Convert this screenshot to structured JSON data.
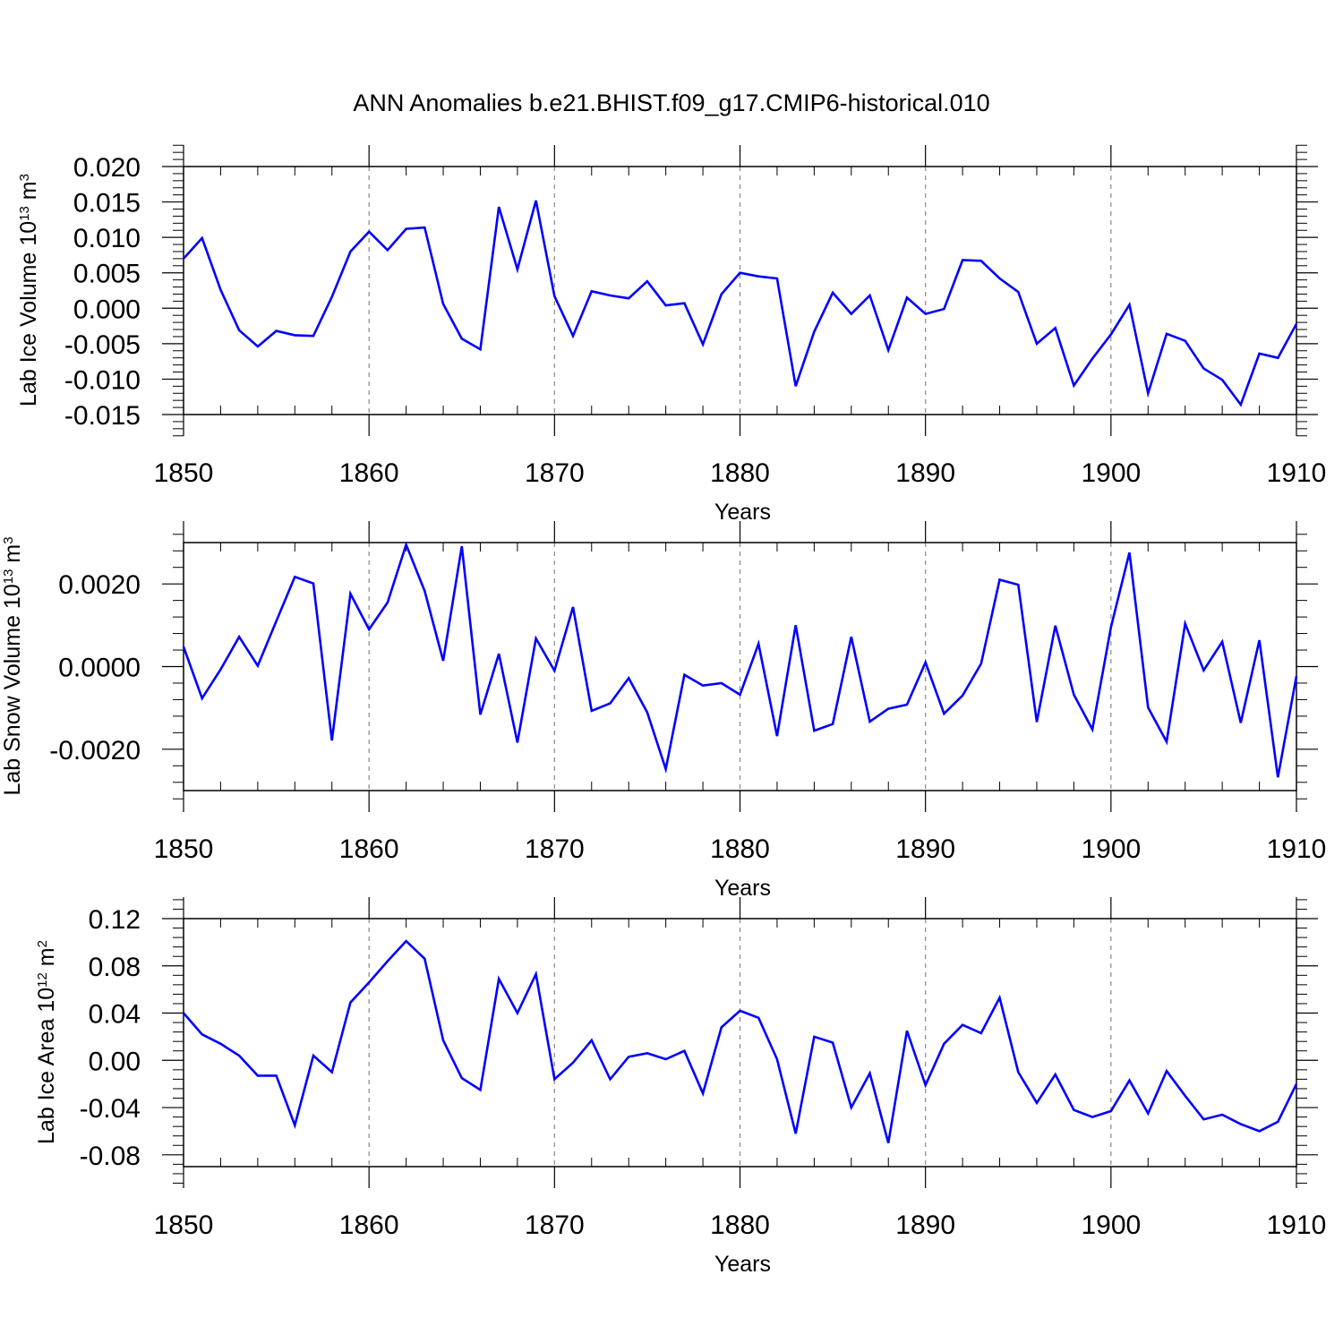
{
  "title": "ANN Anomalies b.e21.BHIST.f09_g17.CMIP6-historical.010",
  "colors": {
    "line": "#0000ff",
    "axis": "#000000",
    "grid": "#888888"
  },
  "chart_data": [
    {
      "type": "line",
      "title": "",
      "xlabel": "Years",
      "ylabel": {
        "prefix": "Lab Ice Volume 10",
        "exp": "13",
        "unit": " m",
        "unit_exp": "3"
      },
      "xlim": [
        1850,
        1910
      ],
      "ylim": [
        -0.015,
        0.02
      ],
      "xticks": [
        1850,
        1860,
        1870,
        1880,
        1890,
        1900,
        1910
      ],
      "yticks": [
        -0.015,
        -0.01,
        -0.005,
        0.0,
        0.005,
        0.01,
        0.015,
        0.02
      ],
      "ytick_labels": [
        "-0.015",
        "-0.010",
        "-0.005",
        "0.000",
        "0.005",
        "0.010",
        "0.015",
        "0.020"
      ],
      "vgrid": [
        1860,
        1870,
        1880,
        1890,
        1900
      ],
      "series": [
        {
          "name": "Lab Ice Volume",
          "x": [
            1850,
            1851,
            1852,
            1853,
            1854,
            1855,
            1856,
            1857,
            1858,
            1859,
            1860,
            1861,
            1862,
            1863,
            1864,
            1865,
            1866,
            1867,
            1868,
            1869,
            1870,
            1871,
            1872,
            1873,
            1874,
            1875,
            1876,
            1877,
            1878,
            1879,
            1880,
            1881,
            1882,
            1883,
            1884,
            1885,
            1886,
            1887,
            1888,
            1889,
            1890,
            1891,
            1892,
            1893,
            1894,
            1895,
            1896,
            1897,
            1898,
            1899,
            1900,
            1901,
            1902,
            1903,
            1904,
            1905,
            1906,
            1907,
            1908,
            1909,
            1910
          ],
          "values": [
            0.007,
            0.0099,
            0.0026,
            -0.0031,
            -0.0054,
            -0.0032,
            -0.0038,
            -0.0039,
            0.0016,
            0.008,
            0.0108,
            0.0082,
            0.0112,
            0.0114,
            0.0006,
            -0.0043,
            -0.0058,
            0.0143,
            0.0055,
            0.0152,
            0.0017,
            -0.0039,
            0.0024,
            0.0018,
            0.0014,
            0.0038,
            0.0004,
            0.0007,
            -0.0051,
            0.002,
            0.005,
            0.0045,
            0.0042,
            -0.011,
            -0.0033,
            0.0022,
            -0.0008,
            0.0018,
            -0.0059,
            0.0015,
            -0.0008,
            -0.0001,
            0.0068,
            0.0067,
            0.0042,
            0.0023,
            -0.005,
            -0.0028,
            -0.0109,
            -0.0071,
            -0.0037,
            0.0005,
            -0.012,
            -0.0036,
            -0.0046,
            -0.0085,
            -0.0101,
            -0.0136,
            -0.0064,
            -0.007,
            -0.0022
          ]
        }
      ]
    },
    {
      "type": "line",
      "title": "",
      "xlabel": "Years",
      "ylabel": {
        "prefix": "Lab Snow Volume 10",
        "exp": "13",
        "unit": " m",
        "unit_exp": "3"
      },
      "xlim": [
        1850,
        1910
      ],
      "ylim": [
        -0.003,
        0.003
      ],
      "xticks": [
        1850,
        1860,
        1870,
        1880,
        1890,
        1900,
        1910
      ],
      "yticks": [
        -0.002,
        0.0,
        0.002
      ],
      "ytick_labels": [
        "-0.0020",
        "0.0000",
        "0.0020"
      ],
      "vgrid": [
        1860,
        1870,
        1880,
        1890,
        1900
      ],
      "series": [
        {
          "name": "Lab Snow Volume",
          "x": [
            1850,
            1851,
            1852,
            1853,
            1854,
            1855,
            1856,
            1857,
            1858,
            1859,
            1860,
            1861,
            1862,
            1863,
            1864,
            1865,
            1866,
            1867,
            1868,
            1869,
            1870,
            1871,
            1872,
            1873,
            1874,
            1875,
            1876,
            1877,
            1878,
            1879,
            1880,
            1881,
            1882,
            1883,
            1884,
            1885,
            1886,
            1887,
            1888,
            1889,
            1890,
            1891,
            1892,
            1893,
            1894,
            1895,
            1896,
            1897,
            1898,
            1899,
            1900,
            1901,
            1902,
            1903,
            1904,
            1905,
            1906,
            1907,
            1908,
            1909,
            1910
          ],
          "values": [
            0.00048,
            -0.00077,
            -7e-05,
            0.00072,
            2e-05,
            0.0011,
            0.00217,
            0.00201,
            -0.00179,
            0.00176,
            0.0009,
            0.00155,
            0.00295,
            0.00183,
            0.00014,
            0.00291,
            -0.00116,
            0.00031,
            -0.00184,
            0.00068,
            -0.0001,
            0.00144,
            -0.00107,
            -0.00089,
            -0.00028,
            -0.00111,
            -0.00248,
            -0.0002,
            -0.00046,
            -0.0004,
            -0.00068,
            0.00055,
            -0.00168,
            0.001,
            -0.00155,
            -0.00139,
            0.00072,
            -0.00133,
            -0.00102,
            -0.00092,
            0.0001,
            -0.00114,
            -0.0007,
            7e-05,
            0.0021,
            0.00198,
            -0.00134,
            0.00099,
            -0.00068,
            -0.00152,
            0.00095,
            0.00276,
            -0.00099,
            -0.00182,
            0.00104,
            -9e-05,
            0.0006,
            -0.00136,
            0.00064,
            -0.00268,
            -0.00023
          ]
        }
      ]
    },
    {
      "type": "line",
      "title": "",
      "xlabel": "Years",
      "ylabel": {
        "prefix": "Lab Ice Area 10",
        "exp": "12",
        "unit": " m",
        "unit_exp": "2"
      },
      "xlim": [
        1850,
        1910
      ],
      "ylim": [
        -0.09,
        0.12
      ],
      "xticks": [
        1850,
        1860,
        1870,
        1880,
        1890,
        1900,
        1910
      ],
      "yticks": [
        -0.08,
        -0.04,
        0.0,
        0.04,
        0.08,
        0.12
      ],
      "ytick_labels": [
        "-0.08",
        "-0.04",
        "0.00",
        "0.04",
        "0.08",
        "0.12"
      ],
      "vgrid": [
        1860,
        1870,
        1880,
        1890,
        1900
      ],
      "series": [
        {
          "name": "Lab Ice Area",
          "x": [
            1850,
            1851,
            1852,
            1853,
            1854,
            1855,
            1856,
            1857,
            1858,
            1859,
            1860,
            1861,
            1862,
            1863,
            1864,
            1865,
            1866,
            1867,
            1868,
            1869,
            1870,
            1871,
            1872,
            1873,
            1874,
            1875,
            1876,
            1877,
            1878,
            1879,
            1880,
            1881,
            1882,
            1883,
            1884,
            1885,
            1886,
            1887,
            1888,
            1889,
            1890,
            1891,
            1892,
            1893,
            1894,
            1895,
            1896,
            1897,
            1898,
            1899,
            1900,
            1901,
            1902,
            1903,
            1904,
            1905,
            1906,
            1907,
            1908,
            1909,
            1910
          ],
          "values": [
            0.04,
            0.022,
            0.014,
            0.004,
            -0.013,
            -0.013,
            -0.055,
            0.004,
            -0.01,
            0.049,
            0.066,
            0.084,
            0.101,
            0.086,
            0.017,
            -0.015,
            -0.025,
            0.069,
            0.04,
            0.073,
            -0.016,
            -0.002,
            0.017,
            -0.016,
            0.003,
            0.006,
            0.001,
            0.008,
            -0.028,
            0.028,
            0.042,
            0.036,
            0.001,
            -0.062,
            0.02,
            0.015,
            -0.04,
            -0.011,
            -0.07,
            0.025,
            -0.021,
            0.014,
            0.03,
            0.023,
            0.053,
            -0.01,
            -0.036,
            -0.012,
            -0.042,
            -0.048,
            -0.043,
            -0.017,
            -0.045,
            -0.009,
            -0.03,
            -0.05,
            -0.046,
            -0.054,
            -0.06,
            -0.052,
            -0.02
          ]
        }
      ]
    }
  ]
}
